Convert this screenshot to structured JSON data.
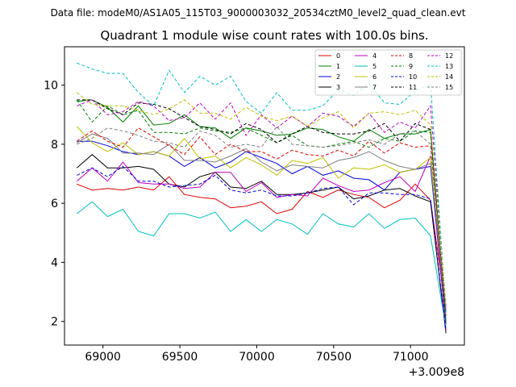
{
  "chart_data": {
    "type": "line",
    "suptitle": "Data file: modeM0/AS1A05_115T03_9000003032_20534cztM0_level2_quad_clean.evt",
    "title": "Quadrant 1 module wise count rates with 100.0s bins.",
    "x_offset_label": "+3.009e8",
    "xlim": [
      68750,
      71350
    ],
    "ylim": [
      1.2,
      11.3
    ],
    "x_ticks": [
      69000,
      69500,
      70000,
      70500,
      71000
    ],
    "x_tick_labels": [
      "69000",
      "69500",
      "70000",
      "70500",
      "71000"
    ],
    "y_ticks": [
      2,
      4,
      6,
      8,
      10
    ],
    "y_tick_labels": [
      "2",
      "4",
      "6",
      "8",
      "10"
    ],
    "x": [
      68830,
      68930,
      69030,
      69130,
      69230,
      69330,
      69430,
      69530,
      69630,
      69730,
      69830,
      69930,
      70030,
      70130,
      70230,
      70330,
      70430,
      70530,
      70630,
      70730,
      70830,
      70930,
      71030,
      71130,
      71230
    ],
    "series": [
      {
        "name": "0",
        "color": "#e00000",
        "dash": "solid",
        "values": [
          6.65,
          6.45,
          6.5,
          6.45,
          6.55,
          6.45,
          6.9,
          6.3,
          6.2,
          6.15,
          5.85,
          5.9,
          6.05,
          5.65,
          5.8,
          6.4,
          6.2,
          6.45,
          6.3,
          6.2,
          5.85,
          6.1,
          6.65,
          6.1,
          2.4
        ]
      },
      {
        "name": "1",
        "color": "#008000",
        "dash": "solid",
        "values": [
          9.45,
          9.5,
          9.25,
          8.75,
          9.3,
          8.65,
          8.7,
          9.0,
          8.6,
          8.55,
          8.2,
          8.55,
          8.45,
          8.3,
          8.35,
          8.55,
          8.5,
          8.25,
          8.1,
          8.5,
          8.2,
          8.35,
          8.35,
          8.5,
          2.0
        ]
      },
      {
        "name": "2",
        "color": "#0000e0",
        "dash": "solid",
        "values": [
          8.1,
          8.1,
          7.95,
          7.75,
          7.65,
          7.75,
          7.6,
          7.25,
          7.55,
          7.2,
          7.4,
          7.75,
          7.55,
          7.35,
          7.0,
          7.25,
          6.95,
          7.1,
          6.85,
          6.8,
          6.45,
          7.05,
          7.15,
          7.25,
          1.9
        ]
      },
      {
        "name": "3",
        "color": "#000000",
        "dash": "solid",
        "values": [
          7.2,
          7.65,
          7.2,
          7.2,
          7.25,
          7.15,
          6.65,
          6.55,
          6.9,
          7.05,
          6.55,
          6.5,
          6.75,
          6.3,
          6.3,
          6.35,
          6.45,
          6.55,
          6.15,
          6.25,
          6.45,
          6.5,
          6.25,
          6.05,
          1.6
        ]
      },
      {
        "name": "4",
        "color": "#c000c0",
        "dash": "solid",
        "values": [
          6.75,
          7.2,
          6.75,
          7.4,
          6.7,
          6.65,
          6.65,
          6.5,
          6.55,
          7.05,
          7.05,
          6.4,
          6.7,
          6.2,
          6.3,
          6.25,
          6.85,
          6.6,
          6.4,
          6.45,
          6.7,
          6.9,
          6.4,
          7.6,
          1.7
        ]
      },
      {
        "name": "5",
        "color": "#00c0c0",
        "dash": "solid",
        "values": [
          5.65,
          6.05,
          5.55,
          5.8,
          5.05,
          4.9,
          5.65,
          5.65,
          5.5,
          5.7,
          5.05,
          5.45,
          5.05,
          5.45,
          5.3,
          4.95,
          5.65,
          5.3,
          5.2,
          5.65,
          5.15,
          5.45,
          5.5,
          4.9,
          1.8
        ]
      },
      {
        "name": "6",
        "color": "#c0c000",
        "dash": "solid",
        "values": [
          8.6,
          8.05,
          7.75,
          8.05,
          7.65,
          7.75,
          7.6,
          8.2,
          7.5,
          7.6,
          7.2,
          7.55,
          7.3,
          6.95,
          7.45,
          7.35,
          7.55,
          6.85,
          7.2,
          7.15,
          7.3,
          7.05,
          7.15,
          7.55,
          2.2
        ]
      },
      {
        "name": "7",
        "color": "#808080",
        "dash": "solid",
        "values": [
          8.05,
          8.35,
          8.2,
          7.7,
          7.7,
          7.65,
          8.0,
          7.45,
          7.45,
          7.4,
          7.6,
          7.85,
          7.4,
          7.1,
          7.3,
          7.25,
          7.2,
          7.45,
          7.55,
          7.75,
          7.45,
          7.25,
          7.15,
          7.35,
          2.3
        ]
      },
      {
        "name": "8",
        "color": "#e00000",
        "dash": "dashed",
        "values": [
          8.1,
          8.45,
          8.1,
          7.9,
          8.55,
          8.25,
          7.95,
          7.65,
          8.25,
          7.65,
          8.0,
          7.75,
          7.75,
          7.5,
          7.8,
          7.65,
          7.6,
          7.8,
          7.6,
          8.1,
          7.7,
          8.05,
          7.9,
          7.95,
          2.3
        ]
      },
      {
        "name": "9",
        "color": "#008000",
        "dash": "dashed",
        "values": [
          9.5,
          8.75,
          9.3,
          9.0,
          9.15,
          8.4,
          8.4,
          8.35,
          8.55,
          8.45,
          8.4,
          8.55,
          8.3,
          8.05,
          8.3,
          7.95,
          7.9,
          8.0,
          8.1,
          7.9,
          8.2,
          8.1,
          8.45,
          8.4,
          2.0
        ]
      },
      {
        "name": "10",
        "color": "#0000e0",
        "dash": "dashed",
        "values": [
          6.95,
          7.2,
          6.9,
          7.25,
          6.75,
          6.75,
          6.55,
          6.6,
          6.65,
          6.95,
          6.45,
          6.35,
          6.45,
          6.25,
          6.25,
          6.35,
          6.5,
          6.55,
          5.95,
          6.35,
          6.35,
          6.3,
          6.3,
          6.15,
          1.7
        ]
      },
      {
        "name": "11",
        "color": "#000000",
        "dash": "dashed",
        "values": [
          9.5,
          9.5,
          9.2,
          9.0,
          9.4,
          9.35,
          9.2,
          8.9,
          8.6,
          8.5,
          8.35,
          8.7,
          8.5,
          8.05,
          8.35,
          8.6,
          8.4,
          8.35,
          8.35,
          8.45,
          8.7,
          8.1,
          8.7,
          8.5,
          2.2
        ]
      },
      {
        "name": "12",
        "color": "#c000c0",
        "dash": "dashed",
        "values": [
          9.3,
          9.5,
          9.0,
          9.1,
          9.45,
          9.3,
          8.8,
          8.9,
          9.4,
          8.85,
          9.4,
          8.3,
          9.0,
          8.55,
          8.95,
          8.6,
          9.05,
          8.95,
          8.6,
          9.05,
          8.4,
          8.75,
          8.55,
          9.3,
          2.5
        ]
      },
      {
        "name": "13",
        "color": "#00c0c0",
        "dash": "dashed",
        "values": [
          10.75,
          10.55,
          10.4,
          10.4,
          9.75,
          9.3,
          10.5,
          9.75,
          10.3,
          10.0,
          10.3,
          9.45,
          9.05,
          9.75,
          9.15,
          9.15,
          9.3,
          9.85,
          9.65,
          10.05,
          9.4,
          9.35,
          9.8,
          10.05,
          2.3
        ]
      },
      {
        "name": "14",
        "color": "#c0c000",
        "dash": "dashed",
        "values": [
          9.75,
          9.35,
          9.3,
          9.3,
          9.15,
          9.0,
          9.2,
          9.5,
          9.05,
          9.05,
          8.85,
          9.25,
          8.95,
          8.8,
          8.95,
          8.6,
          8.9,
          9.1,
          8.55,
          9.05,
          9.1,
          9.0,
          9.15,
          8.65,
          2.6
        ]
      },
      {
        "name": "15",
        "color": "#808080",
        "dash": "dashed",
        "values": [
          8.0,
          8.2,
          8.55,
          8.45,
          8.3,
          8.1,
          8.05,
          7.9,
          8.45,
          8.3,
          7.9,
          8.0,
          7.9,
          8.6,
          8.0,
          7.95,
          7.9,
          7.95,
          8.05,
          8.15,
          8.0,
          8.35,
          8.45,
          8.0,
          2.4
        ]
      }
    ]
  }
}
